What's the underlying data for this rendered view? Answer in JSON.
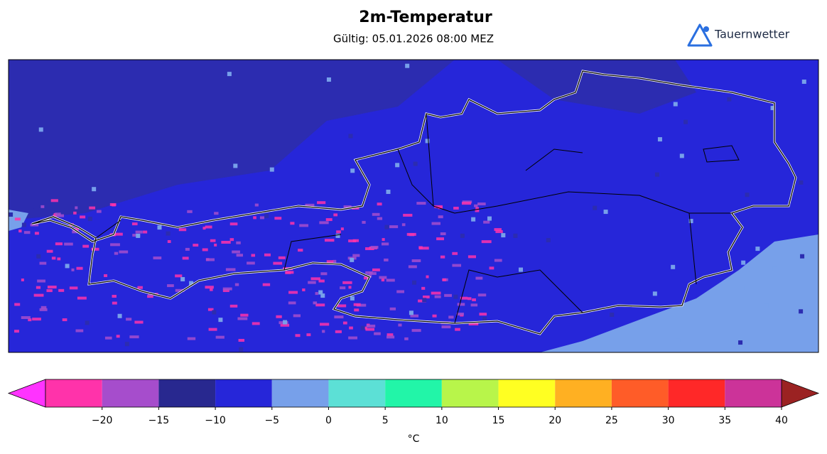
{
  "header": {
    "title": "2m-Temperatur",
    "subtitle": "Gültig: 05.01.2026 08:00 MEZ",
    "brand": "Tauernwetter"
  },
  "colorbar": {
    "label": "°C",
    "levels": [
      -25,
      -20,
      -15,
      -10,
      -5,
      0,
      5,
      10,
      15,
      20,
      25,
      30,
      35,
      40
    ],
    "colors": [
      "#ff33aa",
      "#a64dcc",
      "#28288f",
      "#2626d9",
      "#77a0ea",
      "#5ce0d6",
      "#22f5a8",
      "#b8f54a",
      "#ffff22",
      "#ffb022",
      "#ff5c28",
      "#ff2828",
      "#cc3399"
    ],
    "under_color": "#ff33ff",
    "over_color": "#9b2222",
    "ticks": [
      {
        "value": -20,
        "label": "−20"
      },
      {
        "value": -15,
        "label": "−15"
      },
      {
        "value": -10,
        "label": "−10"
      },
      {
        "value": -5,
        "label": "−5"
      },
      0,
      5,
      10,
      15,
      20,
      25,
      30,
      35,
      40
    ]
  }
}
